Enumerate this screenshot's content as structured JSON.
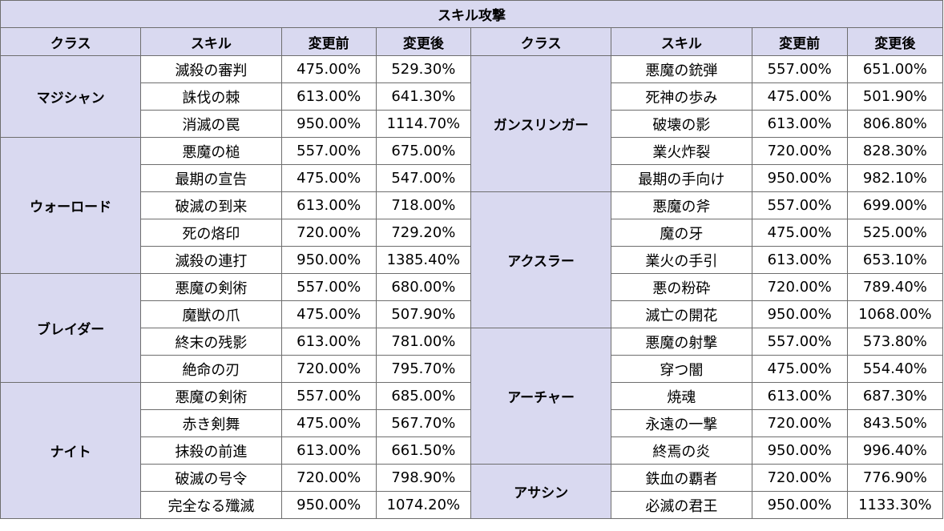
{
  "title": "スキル攻撃",
  "headers": [
    "クラス",
    "スキル",
    "変更前",
    "変更後",
    "クラス",
    "スキル",
    "変更前",
    "変更後"
  ],
  "left_groups": [
    {
      "class": "マジシャン",
      "rows": [
        {
          "skill": "滅殺の審判",
          "before": "475.00%",
          "after": "529.30%"
        },
        {
          "skill": "誅伐の棘",
          "before": "613.00%",
          "after": "641.30%"
        },
        {
          "skill": "消滅の罠",
          "before": "950.00%",
          "after": "1114.70%"
        }
      ]
    },
    {
      "class": "ウォーロード",
      "rows": [
        {
          "skill": "悪魔の槌",
          "before": "557.00%",
          "after": "675.00%"
        },
        {
          "skill": "最期の宣告",
          "before": "475.00%",
          "after": "547.00%"
        },
        {
          "skill": "破滅の到来",
          "before": "613.00%",
          "after": "718.00%"
        },
        {
          "skill": "死の烙印",
          "before": "720.00%",
          "after": "729.20%"
        },
        {
          "skill": "滅殺の連打",
          "before": "950.00%",
          "after": "1385.40%"
        }
      ]
    },
    {
      "class": "ブレイダー",
      "rows": [
        {
          "skill": "悪魔の剣術",
          "before": "557.00%",
          "after": "680.00%"
        },
        {
          "skill": "魔獣の爪",
          "before": "475.00%",
          "after": "507.90%"
        },
        {
          "skill": "終末の残影",
          "before": "613.00%",
          "after": "781.00%"
        },
        {
          "skill": "絶命の刃",
          "before": "720.00%",
          "after": "795.70%"
        }
      ]
    },
    {
      "class": "ナイト",
      "rows": [
        {
          "skill": "悪魔の剣術",
          "before": "557.00%",
          "after": "685.00%"
        },
        {
          "skill": "赤き剣舞",
          "before": "475.00%",
          "after": "567.70%"
        },
        {
          "skill": "抹殺の前進",
          "before": "613.00%",
          "after": "661.50%"
        },
        {
          "skill": "破滅の号令",
          "before": "720.00%",
          "after": "798.90%"
        },
        {
          "skill": "完全なる殲滅",
          "before": "950.00%",
          "after": "1074.20%"
        }
      ]
    }
  ],
  "right_groups": [
    {
      "class": "ガンスリンガー",
      "rows": [
        {
          "skill": "悪魔の銃弾",
          "before": "557.00%",
          "after": "651.00%"
        },
        {
          "skill": "死神の歩み",
          "before": "475.00%",
          "after": "501.90%"
        },
        {
          "skill": "破壊の影",
          "before": "613.00%",
          "after": "806.80%"
        },
        {
          "skill": "業火炸裂",
          "before": "720.00%",
          "after": "828.30%"
        },
        {
          "skill": "最期の手向け",
          "before": "950.00%",
          "after": "982.10%"
        }
      ]
    },
    {
      "class": "アクスラー",
      "rows": [
        {
          "skill": "悪魔の斧",
          "before": "557.00%",
          "after": "699.00%"
        },
        {
          "skill": "魔の牙",
          "before": "475.00%",
          "after": "525.00%"
        },
        {
          "skill": "業火の手引",
          "before": "613.00%",
          "after": "653.10%"
        },
        {
          "skill": "悪の粉砕",
          "before": "720.00%",
          "after": "789.40%"
        },
        {
          "skill": "滅亡の開花",
          "before": "950.00%",
          "after": "1068.00%"
        }
      ]
    },
    {
      "class": "アーチャー",
      "rows": [
        {
          "skill": "悪魔の射撃",
          "before": "557.00%",
          "after": "573.80%"
        },
        {
          "skill": "穿つ闇",
          "before": "475.00%",
          "after": "554.40%"
        },
        {
          "skill": "焼魂",
          "before": "613.00%",
          "after": "687.30%"
        },
        {
          "skill": "永遠の一撃",
          "before": "720.00%",
          "after": "843.50%"
        },
        {
          "skill": "終焉の炎",
          "before": "950.00%",
          "after": "996.40%"
        }
      ]
    },
    {
      "class": "アサシン",
      "rows": [
        {
          "skill": "鉄血の覇者",
          "before": "720.00%",
          "after": "776.90%"
        },
        {
          "skill": "必滅の君王",
          "before": "950.00%",
          "after": "1133.30%"
        }
      ]
    }
  ]
}
